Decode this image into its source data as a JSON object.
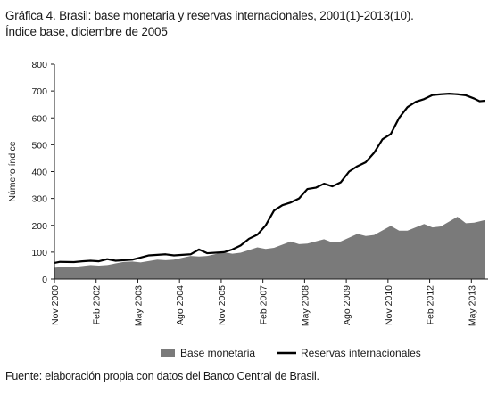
{
  "header": {
    "title": "Gráfica 4. Brasil: base monetaria y reservas internacionales, 2001(1)-2013(10).",
    "subtitle": "Índice base, diciembre de 2005"
  },
  "footer": {
    "source": "Fuente: elaboración propia con datos del Banco Central de Brasil."
  },
  "chart_data": {
    "type": "area",
    "ylabel": "Número índice",
    "ylim": [
      0,
      800
    ],
    "yticks": [
      0,
      100,
      200,
      300,
      400,
      500,
      600,
      700,
      800
    ],
    "xticks": [
      "Nov 2000",
      "Feb 2002",
      "May 2003",
      "Ago 2004",
      "Nov 2005",
      "Feb 2007",
      "May 2008",
      "Ago 2009",
      "Nov 2010",
      "Feb 2012",
      "May 2013"
    ],
    "legend_position": "bottom",
    "series": [
      {
        "name": "Base monetaria",
        "kind": "area",
        "color": "#7a7a7a",
        "points": [
          [
            "2000-11",
            42
          ],
          [
            "2001-01",
            44
          ],
          [
            "2001-06",
            45
          ],
          [
            "2001-12",
            52
          ],
          [
            "2002-03",
            50
          ],
          [
            "2002-06",
            52
          ],
          [
            "2002-12",
            64
          ],
          [
            "2003-03",
            65
          ],
          [
            "2003-06",
            62
          ],
          [
            "2003-12",
            72
          ],
          [
            "2004-03",
            70
          ],
          [
            "2004-06",
            72
          ],
          [
            "2004-12",
            86
          ],
          [
            "2005-03",
            84
          ],
          [
            "2005-06",
            86
          ],
          [
            "2005-12",
            100
          ],
          [
            "2006-03",
            94
          ],
          [
            "2006-06",
            98
          ],
          [
            "2006-12",
            118
          ],
          [
            "2007-03",
            112
          ],
          [
            "2007-06",
            116
          ],
          [
            "2007-12",
            140
          ],
          [
            "2008-03",
            130
          ],
          [
            "2008-06",
            132
          ],
          [
            "2008-12",
            148
          ],
          [
            "2009-03",
            136
          ],
          [
            "2009-06",
            140
          ],
          [
            "2009-12",
            168
          ],
          [
            "2010-03",
            160
          ],
          [
            "2010-06",
            164
          ],
          [
            "2010-12",
            198
          ],
          [
            "2011-03",
            180
          ],
          [
            "2011-06",
            180
          ],
          [
            "2011-12",
            205
          ],
          [
            "2012-03",
            192
          ],
          [
            "2012-06",
            196
          ],
          [
            "2012-12",
            232
          ],
          [
            "2013-03",
            208
          ],
          [
            "2013-06",
            210
          ],
          [
            "2013-10",
            220
          ]
        ]
      },
      {
        "name": "Reservas internacionales",
        "kind": "line",
        "color": "#000000",
        "points": [
          [
            "2000-11",
            60
          ],
          [
            "2001-01",
            64
          ],
          [
            "2001-06",
            63
          ],
          [
            "2001-09",
            66
          ],
          [
            "2001-12",
            68
          ],
          [
            "2002-03",
            66
          ],
          [
            "2002-06",
            74
          ],
          [
            "2002-09",
            68
          ],
          [
            "2002-12",
            70
          ],
          [
            "2003-03",
            72
          ],
          [
            "2003-06",
            80
          ],
          [
            "2003-09",
            88
          ],
          [
            "2003-12",
            90
          ],
          [
            "2004-03",
            92
          ],
          [
            "2004-06",
            88
          ],
          [
            "2004-09",
            90
          ],
          [
            "2004-12",
            92
          ],
          [
            "2005-03",
            110
          ],
          [
            "2005-06",
            96
          ],
          [
            "2005-09",
            98
          ],
          [
            "2005-12",
            100
          ],
          [
            "2006-03",
            110
          ],
          [
            "2006-06",
            125
          ],
          [
            "2006-09",
            150
          ],
          [
            "2006-12",
            165
          ],
          [
            "2007-03",
            200
          ],
          [
            "2007-06",
            255
          ],
          [
            "2007-09",
            275
          ],
          [
            "2007-12",
            285
          ],
          [
            "2008-03",
            300
          ],
          [
            "2008-06",
            335
          ],
          [
            "2008-09",
            340
          ],
          [
            "2008-12",
            355
          ],
          [
            "2009-03",
            345
          ],
          [
            "2009-06",
            360
          ],
          [
            "2009-09",
            400
          ],
          [
            "2009-12",
            420
          ],
          [
            "2010-03",
            435
          ],
          [
            "2010-06",
            470
          ],
          [
            "2010-09",
            520
          ],
          [
            "2010-12",
            540
          ],
          [
            "2011-03",
            600
          ],
          [
            "2011-06",
            640
          ],
          [
            "2011-09",
            660
          ],
          [
            "2011-12",
            670
          ],
          [
            "2012-03",
            685
          ],
          [
            "2012-06",
            688
          ],
          [
            "2012-09",
            690
          ],
          [
            "2012-12",
            688
          ],
          [
            "2013-03",
            684
          ],
          [
            "2013-06",
            672
          ],
          [
            "2013-08",
            662
          ],
          [
            "2013-10",
            664
          ]
        ]
      }
    ]
  }
}
